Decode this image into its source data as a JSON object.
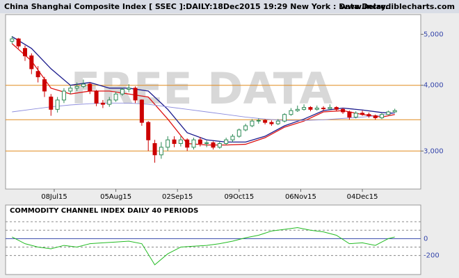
{
  "header": {
    "title": "China Shanghai Composite Index [ SSEC ]:DAILY:18Dec2015 19:29 New York : Data Delay..",
    "site": "www.incrediblecharts.com"
  },
  "chart_data": [
    {
      "type": "candlestick",
      "watermark": "FREE DATA",
      "log_scale": true,
      "up_color": "#2e8b57",
      "down_color": "#cc0000",
      "xlim": [
        -2,
        126
      ],
      "ylim": [
        2540,
        5450
      ],
      "yticks": [
        {
          "value": 3000,
          "label": "3,000"
        },
        {
          "value": 4000,
          "label": "4,000"
        },
        {
          "value": 5000,
          "label": "5,000"
        }
      ],
      "xticks": [
        {
          "value": 13,
          "label": "08Jul15"
        },
        {
          "value": 32,
          "label": "05Aug15"
        },
        {
          "value": 51,
          "label": "02Sep15"
        },
        {
          "value": 70,
          "label": "09Oct15"
        },
        {
          "value": 89,
          "label": "06Nov15"
        },
        {
          "value": 108,
          "label": "04Dec15"
        }
      ],
      "reference_lines": {
        "color": "#e08a1e",
        "values": [
          4000,
          3440,
          3000
        ]
      },
      "x": [
        0,
        2,
        4,
        6,
        8,
        10,
        12,
        14,
        16,
        18,
        20,
        22,
        24,
        26,
        28,
        30,
        32,
        34,
        36,
        38,
        40,
        42,
        44,
        46,
        48,
        50,
        52,
        54,
        56,
        58,
        60,
        62,
        64,
        66,
        68,
        70,
        72,
        74,
        76,
        78,
        80,
        82,
        84,
        86,
        88,
        90,
        92,
        94,
        96,
        98,
        100,
        102,
        104,
        106,
        108,
        110,
        112,
        114,
        116,
        118
      ],
      "open": [
        4850,
        4900,
        4700,
        4550,
        4250,
        4100,
        3800,
        3600,
        3750,
        3900,
        3950,
        3980,
        4020,
        3900,
        3700,
        3680,
        3750,
        3850,
        3930,
        3950,
        3750,
        3400,
        3100,
        2950,
        3050,
        3150,
        3100,
        3150,
        3050,
        3150,
        3100,
        3110,
        3050,
        3100,
        3150,
        3200,
        3290,
        3350,
        3420,
        3430,
        3400,
        3380,
        3420,
        3520,
        3580,
        3600,
        3630,
        3600,
        3620,
        3610,
        3630,
        3600,
        3560,
        3480,
        3540,
        3520,
        3500,
        3470,
        3520,
        3560
      ],
      "high": [
        4960,
        4920,
        4760,
        4600,
        4350,
        4150,
        3850,
        3800,
        3950,
        4000,
        4050,
        4100,
        4050,
        3920,
        3750,
        3800,
        3890,
        3960,
        4020,
        3980,
        3760,
        3420,
        3150,
        3120,
        3200,
        3200,
        3200,
        3170,
        3180,
        3190,
        3140,
        3130,
        3130,
        3180,
        3230,
        3310,
        3380,
        3450,
        3460,
        3450,
        3430,
        3450,
        3540,
        3620,
        3660,
        3680,
        3650,
        3660,
        3650,
        3680,
        3650,
        3620,
        3580,
        3570,
        3580,
        3550,
        3520,
        3540,
        3580,
        3610
      ],
      "low": [
        4800,
        4700,
        4450,
        4200,
        4050,
        3800,
        3500,
        3550,
        3700,
        3850,
        3900,
        3950,
        3850,
        3650,
        3620,
        3640,
        3720,
        3820,
        3880,
        3700,
        3350,
        3000,
        2850,
        2900,
        3000,
        3050,
        3060,
        3000,
        3020,
        3060,
        3050,
        3020,
        3030,
        3080,
        3120,
        3180,
        3270,
        3330,
        3380,
        3370,
        3350,
        3360,
        3400,
        3500,
        3560,
        3580,
        3570,
        3580,
        3580,
        3590,
        3570,
        3530,
        3440,
        3460,
        3500,
        3470,
        3440,
        3450,
        3510,
        3550
      ],
      "close": [
        4900,
        4750,
        4550,
        4300,
        4150,
        3900,
        3600,
        3750,
        3900,
        3950,
        3980,
        4020,
        3900,
        3700,
        3680,
        3750,
        3850,
        3930,
        3950,
        3750,
        3400,
        3150,
        2950,
        3050,
        3150,
        3100,
        3150,
        3050,
        3150,
        3100,
        3110,
        3050,
        3100,
        3150,
        3200,
        3290,
        3350,
        3420,
        3430,
        3400,
        3380,
        3420,
        3520,
        3580,
        3600,
        3630,
        3600,
        3620,
        3610,
        3630,
        3600,
        3560,
        3480,
        3540,
        3520,
        3500,
        3470,
        3520,
        3560,
        3580
      ],
      "series": [
        {
          "color": "#1a1a8c",
          "width": 1.3,
          "x": [
            0,
            6,
            12,
            18,
            24,
            30,
            36,
            42,
            48,
            54,
            60,
            66,
            72,
            78,
            84,
            90,
            96,
            102,
            108,
            114,
            118
          ],
          "values": [
            4950,
            4700,
            4300,
            4000,
            4050,
            3950,
            3950,
            3900,
            3600,
            3250,
            3150,
            3120,
            3120,
            3200,
            3350,
            3450,
            3580,
            3620,
            3590,
            3550,
            3540
          ]
        },
        {
          "color": "#dd1111",
          "width": 1.3,
          "x": [
            0,
            6,
            12,
            18,
            24,
            30,
            36,
            42,
            48,
            54,
            60,
            66,
            72,
            78,
            84,
            90,
            96,
            102,
            108,
            114,
            118
          ],
          "values": [
            4800,
            4450,
            3950,
            3850,
            3900,
            3900,
            3850,
            3800,
            3450,
            3100,
            3080,
            3080,
            3090,
            3180,
            3330,
            3420,
            3560,
            3580,
            3520,
            3480,
            3520
          ]
        },
        {
          "color": "#8c8cdd",
          "width": 0.9,
          "x": [
            0,
            6,
            12,
            18,
            24,
            30,
            36,
            42,
            48,
            54,
            60,
            66,
            72,
            78,
            84,
            90,
            96,
            102,
            108,
            114,
            118
          ],
          "values": [
            3560,
            3600,
            3640,
            3670,
            3690,
            3700,
            3700,
            3680,
            3640,
            3600,
            3560,
            3520,
            3480,
            3450,
            3430,
            3430,
            3440,
            3460,
            3480,
            3510,
            3540
          ]
        }
      ]
    },
    {
      "type": "line",
      "title": "COMMODITY CHANNEL INDEX DAILY 40 PERIODS",
      "xlim": [
        -2,
        126
      ],
      "ylim": [
        -425,
        258
      ],
      "yticks": [
        -200,
        0
      ],
      "grid_lines": [
        200,
        100,
        -100,
        -200
      ],
      "series": [
        {
          "color": "#22bb22",
          "x": [
            0,
            4,
            8,
            12,
            16,
            20,
            24,
            28,
            32,
            36,
            40,
            44,
            48,
            52,
            56,
            60,
            64,
            68,
            72,
            76,
            80,
            84,
            88,
            92,
            96,
            100,
            104,
            108,
            112,
            116,
            118
          ],
          "values": [
            20,
            -60,
            -100,
            -120,
            -80,
            -100,
            -60,
            -50,
            -40,
            -30,
            -60,
            -310,
            -180,
            -100,
            -90,
            -80,
            -60,
            -30,
            10,
            40,
            90,
            110,
            130,
            100,
            80,
            40,
            -60,
            -50,
            -80,
            0,
            20
          ]
        }
      ]
    }
  ]
}
